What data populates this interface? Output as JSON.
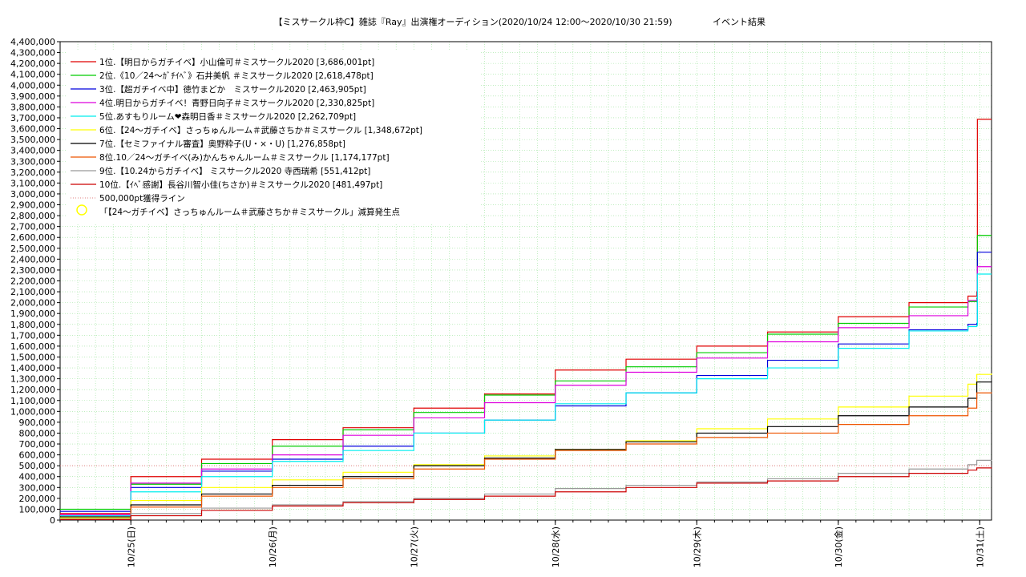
{
  "chart_data": {
    "type": "line",
    "title": "【ミスサークル枠C】雑誌『Ray』出演権オーディション(2020/10/24 12:00～2020/10/30 21:59)",
    "subtitle": "イベント結果",
    "x_ticks": [
      "10/25(日)",
      "10/26(月)",
      "10/27(火)",
      "10/28(水)",
      "10/29(木)",
      "10/30(金)",
      "10/31(土)"
    ],
    "x_tick_hours": [
      12,
      36,
      60,
      84,
      108,
      132,
      156
    ],
    "xlim_hours": [
      0,
      158
    ],
    "ylim": [
      0,
      4400000
    ],
    "y_tick_step": 100000,
    "y_tick_labels": [
      "0",
      "100,000",
      "200,000",
      "300,000",
      "400,000",
      "500,000",
      "600,000",
      "700,000",
      "800,000",
      "900,000",
      "1,000,000",
      "1,100,000",
      "1,200,000",
      "1,300,000",
      "1,400,000",
      "1,500,000",
      "1,600,000",
      "1,700,000",
      "1,800,000",
      "1,900,000",
      "2,000,000",
      "2,100,000",
      "2,200,000",
      "2,300,000",
      "2,400,000",
      "2,500,000",
      "2,600,000",
      "2,700,000",
      "2,800,000",
      "2,900,000",
      "3,000,000",
      "3,100,000",
      "3,200,000",
      "3,300,000",
      "3,400,000",
      "3,500,000",
      "3,600,000",
      "3,700,000",
      "3,800,000",
      "3,900,000",
      "4,000,000",
      "4,100,000",
      "4,200,000",
      "4,300,000",
      "4,400,000"
    ],
    "grid": true,
    "legend_position": "top-left",
    "series": [
      {
        "name": "1位.【明日からガチイベ】小山倫可＃ミスサークル2020 [3,686,001pt]",
        "color": "#e00000",
        "points": [
          [
            0,
            60000
          ],
          [
            12,
            400000
          ],
          [
            24,
            560000
          ],
          [
            36,
            740000
          ],
          [
            48,
            850000
          ],
          [
            60,
            1030000
          ],
          [
            72,
            1160000
          ],
          [
            84,
            1380000
          ],
          [
            96,
            1480000
          ],
          [
            108,
            1600000
          ],
          [
            120,
            1730000
          ],
          [
            132,
            1870000
          ],
          [
            144,
            2000000
          ],
          [
            154,
            2060000
          ],
          [
            155.5,
            2100000
          ],
          [
            155.6,
            3686001
          ],
          [
            158,
            3686001
          ]
        ]
      },
      {
        "name": "2位.《10／24〜ｶﾞﾁｲﾍﾞ》石井美帆 ＃ミスサークル2020 [2,618,478pt]",
        "color": "#00cc00",
        "points": [
          [
            0,
            100000
          ],
          [
            12,
            330000
          ],
          [
            24,
            520000
          ],
          [
            36,
            680000
          ],
          [
            48,
            830000
          ],
          [
            60,
            990000
          ],
          [
            72,
            1150000
          ],
          [
            84,
            1280000
          ],
          [
            96,
            1410000
          ],
          [
            108,
            1540000
          ],
          [
            120,
            1710000
          ],
          [
            132,
            1810000
          ],
          [
            144,
            1960000
          ],
          [
            154,
            2010000
          ],
          [
            155.5,
            2040000
          ],
          [
            155.6,
            2618478
          ],
          [
            158,
            2618478
          ]
        ]
      },
      {
        "name": "3位.【超ガチイベ中】徳竹まどか　ミスサークル2020 [2,463,905pt]",
        "color": "#0000dd",
        "points": [
          [
            0,
            80000
          ],
          [
            12,
            300000
          ],
          [
            24,
            450000
          ],
          [
            36,
            560000
          ],
          [
            48,
            680000
          ],
          [
            60,
            800000
          ],
          [
            72,
            920000
          ],
          [
            84,
            1050000
          ],
          [
            96,
            1170000
          ],
          [
            108,
            1330000
          ],
          [
            120,
            1470000
          ],
          [
            132,
            1620000
          ],
          [
            144,
            1750000
          ],
          [
            154,
            1800000
          ],
          [
            155.5,
            1810000
          ],
          [
            155.6,
            2463905
          ],
          [
            158,
            2463905
          ]
        ]
      },
      {
        "name": "4位.明日からガチイベ！青野日向子＃ミスサークル2020 [2,330,825pt]",
        "color": "#dd00dd",
        "points": [
          [
            0,
            50000
          ],
          [
            12,
            340000
          ],
          [
            24,
            470000
          ],
          [
            36,
            600000
          ],
          [
            48,
            780000
          ],
          [
            60,
            940000
          ],
          [
            72,
            1080000
          ],
          [
            84,
            1240000
          ],
          [
            96,
            1360000
          ],
          [
            108,
            1490000
          ],
          [
            120,
            1640000
          ],
          [
            132,
            1770000
          ],
          [
            144,
            1880000
          ],
          [
            154,
            2020000
          ],
          [
            155.5,
            2030000
          ],
          [
            155.6,
            2330825
          ],
          [
            158,
            2330825
          ]
        ]
      },
      {
        "name": "5位.あすもりルーム❤森明日香＃ミスサークル2020 [2,262,709pt]",
        "color": "#00eeee",
        "points": [
          [
            0,
            40000
          ],
          [
            12,
            260000
          ],
          [
            24,
            400000
          ],
          [
            36,
            540000
          ],
          [
            48,
            640000
          ],
          [
            60,
            800000
          ],
          [
            72,
            920000
          ],
          [
            84,
            1070000
          ],
          [
            96,
            1170000
          ],
          [
            108,
            1300000
          ],
          [
            120,
            1400000
          ],
          [
            132,
            1580000
          ],
          [
            144,
            1740000
          ],
          [
            154,
            1780000
          ],
          [
            155.5,
            1790000
          ],
          [
            155.6,
            2262709
          ],
          [
            158,
            2262709
          ]
        ]
      },
      {
        "name": "6位.【24〜ガチイベ】さっちゅんルーム＃武藤さちか＃ミスサークル [1,348,672pt]",
        "color": "#ffff00",
        "points": [
          [
            0,
            20000
          ],
          [
            12,
            180000
          ],
          [
            24,
            300000
          ],
          [
            36,
            370000
          ],
          [
            48,
            440000
          ],
          [
            60,
            510000
          ],
          [
            72,
            590000
          ],
          [
            84,
            650000
          ],
          [
            96,
            730000
          ],
          [
            108,
            840000
          ],
          [
            120,
            930000
          ],
          [
            132,
            1040000
          ],
          [
            144,
            1140000
          ],
          [
            154,
            1250000
          ],
          [
            155.5,
            1340000
          ],
          [
            158,
            1348672
          ]
        ]
      },
      {
        "name": "7位.【セミファイナル審査】奥野粋子(U・×・U) [1,276,858pt]",
        "color": "#000000",
        "points": [
          [
            0,
            30000
          ],
          [
            12,
            140000
          ],
          [
            24,
            240000
          ],
          [
            36,
            320000
          ],
          [
            48,
            400000
          ],
          [
            60,
            500000
          ],
          [
            72,
            570000
          ],
          [
            84,
            650000
          ],
          [
            96,
            720000
          ],
          [
            108,
            800000
          ],
          [
            120,
            860000
          ],
          [
            132,
            960000
          ],
          [
            144,
            1040000
          ],
          [
            154,
            1120000
          ],
          [
            155.5,
            1270000
          ],
          [
            158,
            1276858
          ]
        ]
      },
      {
        "name": "8位.10／24〜ガチイベ(み)かんちゃんルーム＃ミスサークル [1,174,177pt]",
        "color": "#ee5500",
        "points": [
          [
            0,
            10000
          ],
          [
            12,
            120000
          ],
          [
            24,
            220000
          ],
          [
            36,
            300000
          ],
          [
            48,
            380000
          ],
          [
            60,
            470000
          ],
          [
            72,
            560000
          ],
          [
            84,
            640000
          ],
          [
            96,
            700000
          ],
          [
            108,
            760000
          ],
          [
            120,
            800000
          ],
          [
            132,
            880000
          ],
          [
            144,
            960000
          ],
          [
            154,
            1030000
          ],
          [
            155.5,
            1170000
          ],
          [
            158,
            1174177
          ]
        ]
      },
      {
        "name": "9位.【10.24からガチイベ】 ミスサークル2020 寺西瑞希 [551,412pt]",
        "color": "#999999",
        "points": [
          [
            0,
            10000
          ],
          [
            12,
            60000
          ],
          [
            24,
            110000
          ],
          [
            36,
            140000
          ],
          [
            48,
            170000
          ],
          [
            60,
            200000
          ],
          [
            72,
            240000
          ],
          [
            84,
            290000
          ],
          [
            96,
            320000
          ],
          [
            108,
            350000
          ],
          [
            120,
            380000
          ],
          [
            132,
            430000
          ],
          [
            144,
            470000
          ],
          [
            154,
            510000
          ],
          [
            155.5,
            550000
          ],
          [
            158,
            551412
          ]
        ]
      },
      {
        "name": "10位.【ｲﾍﾞ感謝】長谷川智小佳(ちさか)＃ミスサークル2020 [481,497pt]",
        "color": "#cc0000",
        "points": [
          [
            0,
            5000
          ],
          [
            12,
            40000
          ],
          [
            24,
            90000
          ],
          [
            36,
            130000
          ],
          [
            48,
            160000
          ],
          [
            60,
            190000
          ],
          [
            72,
            220000
          ],
          [
            84,
            260000
          ],
          [
            96,
            300000
          ],
          [
            108,
            340000
          ],
          [
            120,
            360000
          ],
          [
            132,
            400000
          ],
          [
            144,
            430000
          ],
          [
            154,
            460000
          ],
          [
            155.5,
            480000
          ],
          [
            158,
            481497
          ]
        ]
      }
    ],
    "reference_line": {
      "name": "500,000pt獲得ライン",
      "value": 500000,
      "color": "#e08080"
    },
    "marker": {
      "name": "「【24〜ガチイベ】さっちゅんルーム＃武藤さちか＃ミスサークル」減算発生点",
      "color": "#ffff00"
    }
  }
}
